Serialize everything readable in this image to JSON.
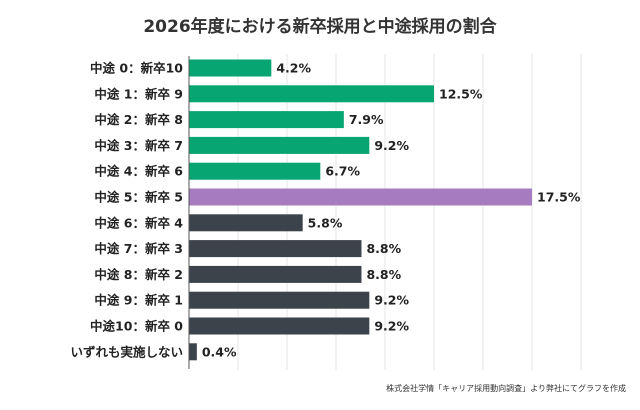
{
  "chart_data": {
    "type": "bar",
    "orientation": "horizontal",
    "title": "2026年度における新卒採用と中途採用の割合",
    "categories": [
      "中途 0：新卒10",
      "中途 1：新卒 9",
      "中途 2：新卒 8",
      "中途 3：新卒 7",
      "中途 4：新卒 6",
      "中途 5：新卒 5",
      "中途 6：新卒 4",
      "中途 7：新卒 3",
      "中途 8：新卒 2",
      "中途 9：新卒 1",
      "中途10：新卒 0",
      "いずれも実施しない"
    ],
    "values": [
      4.2,
      12.5,
      7.9,
      9.2,
      6.7,
      17.5,
      5.8,
      8.8,
      8.8,
      9.2,
      9.2,
      0.4
    ],
    "value_labels": [
      "4.2%",
      "12.5%",
      "7.9%",
      "9.2%",
      "6.7%",
      "17.5%",
      "5.8%",
      "8.8%",
      "8.8%",
      "9.2%",
      "9.2%",
      "0.4%"
    ],
    "xlabel": "",
    "ylabel": "",
    "xlim": [
      0,
      20
    ],
    "grid": true,
    "legend": "none",
    "colors": {
      "green": "#06a572",
      "purple": "#a67bc0",
      "dark": "#3d434a",
      "grid": "#e6e6e6"
    },
    "bar_color_groups": [
      "green",
      "green",
      "green",
      "green",
      "green",
      "purple",
      "dark",
      "dark",
      "dark",
      "dark",
      "dark",
      "dark"
    ],
    "source": "株式会社学情「キャリア採用動向調査」より弊社にてグラフを作成"
  }
}
